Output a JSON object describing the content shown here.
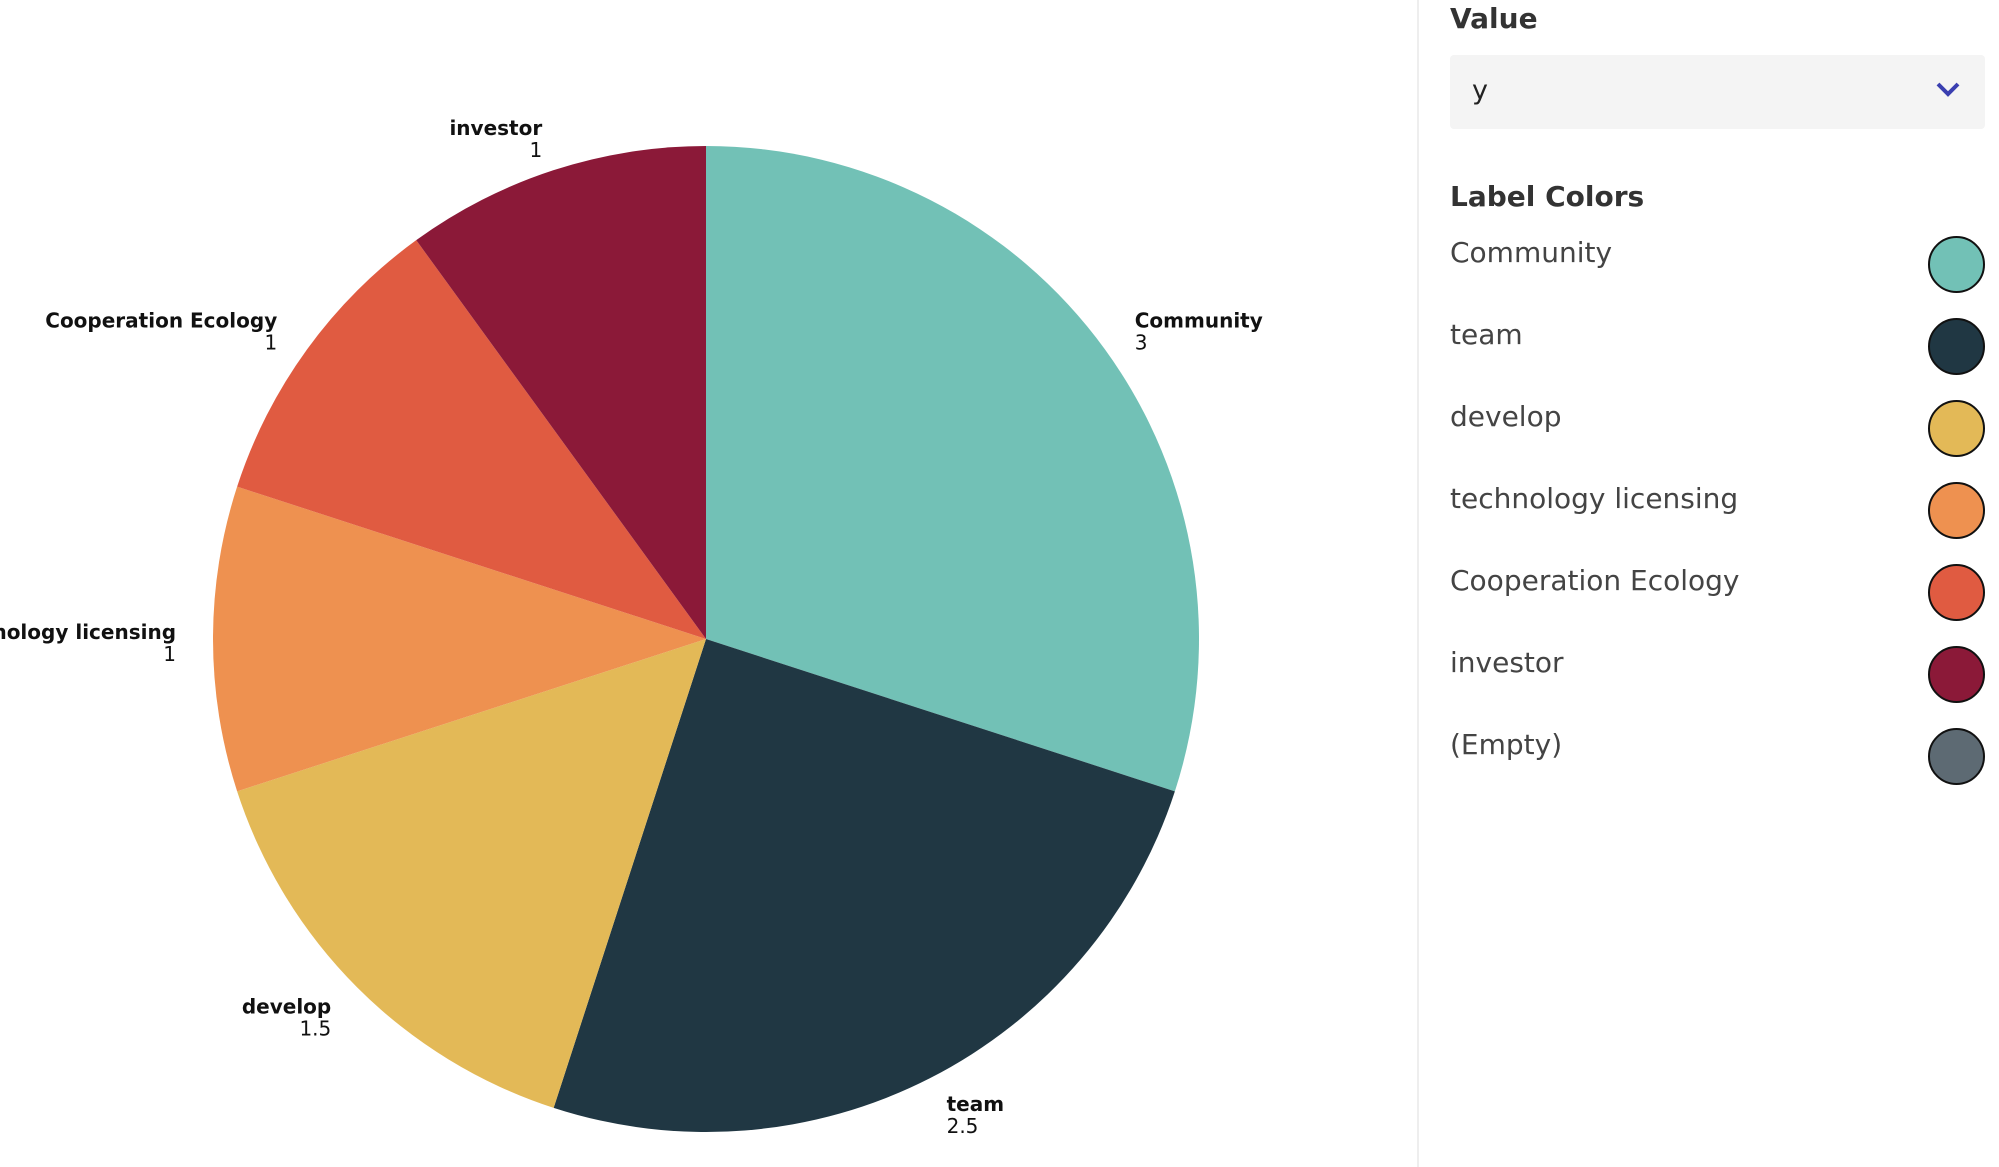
{
  "chart_data": {
    "type": "pie",
    "categories": [
      "Community",
      "team",
      "develop",
      "technology licensing",
      "Cooperation Ecology",
      "investor"
    ],
    "values": [
      3,
      2.5,
      1.5,
      1,
      1,
      1
    ],
    "colors": [
      "#72c1b6",
      "#203743",
      "#e3b957",
      "#ee9150",
      "#e05b41",
      "#8b1938"
    ]
  },
  "panel": {
    "value_heading": "Value",
    "value_selected": "y",
    "label_colors_heading": "Label Colors",
    "label_colors": [
      {
        "label": "Community",
        "color": "#72c1b6"
      },
      {
        "label": "team",
        "color": "#203743"
      },
      {
        "label": "develop",
        "color": "#e3b957"
      },
      {
        "label": "technology licensing",
        "color": "#ee9150"
      },
      {
        "label": "Cooperation Ecology",
        "color": "#e05b41"
      },
      {
        "label": "investor",
        "color": "#8b1938"
      },
      {
        "label": "(Empty)",
        "color": "#5d6a73"
      }
    ]
  }
}
